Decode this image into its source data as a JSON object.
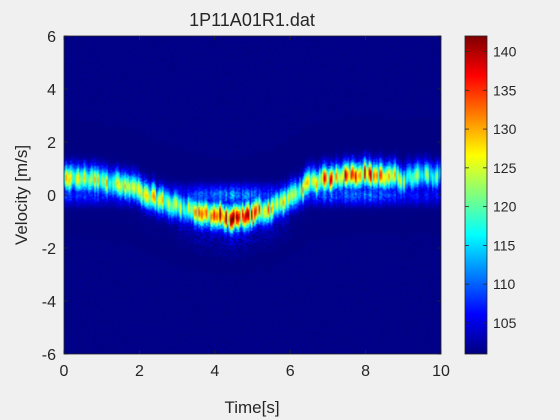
{
  "chart_data": {
    "type": "heatmap",
    "title": "1P11A01R1.dat",
    "xlabel": "Time[s]",
    "ylabel": "Velocity [m/s]",
    "xlim": [
      0,
      10
    ],
    "ylim": [
      -6,
      6
    ],
    "xticks": [
      0,
      2,
      4,
      6,
      8,
      10
    ],
    "yticks": [
      -6,
      -4,
      -2,
      0,
      2,
      4,
      6
    ],
    "colorbar": {
      "range": [
        101,
        142
      ],
      "ticks": [
        105,
        110,
        115,
        120,
        125,
        130,
        135,
        140
      ],
      "colormap": "jet"
    },
    "background_value": 101,
    "ridge": {
      "description": "velocity of peak intensity over time",
      "time": [
        0,
        0.5,
        1.0,
        1.5,
        2.0,
        2.5,
        3.0,
        3.5,
        4.0,
        4.5,
        5.0,
        5.5,
        6.0,
        6.5,
        7.0,
        7.5,
        8.0,
        8.5,
        9.0,
        9.5,
        10.0
      ],
      "velocity": [
        0.6,
        0.6,
        0.5,
        0.4,
        0.2,
        -0.2,
        -0.4,
        -0.6,
        -0.8,
        -0.9,
        -0.7,
        -0.5,
        -0.1,
        0.4,
        0.6,
        0.8,
        0.8,
        0.7,
        0.6,
        0.7,
        0.7
      ],
      "peak_value": [
        126,
        126,
        128,
        126,
        125,
        128,
        124,
        128,
        140,
        138,
        136,
        130,
        124,
        128,
        135,
        136,
        138,
        130,
        124,
        122,
        122
      ]
    },
    "grid": false,
    "legend": "none"
  }
}
